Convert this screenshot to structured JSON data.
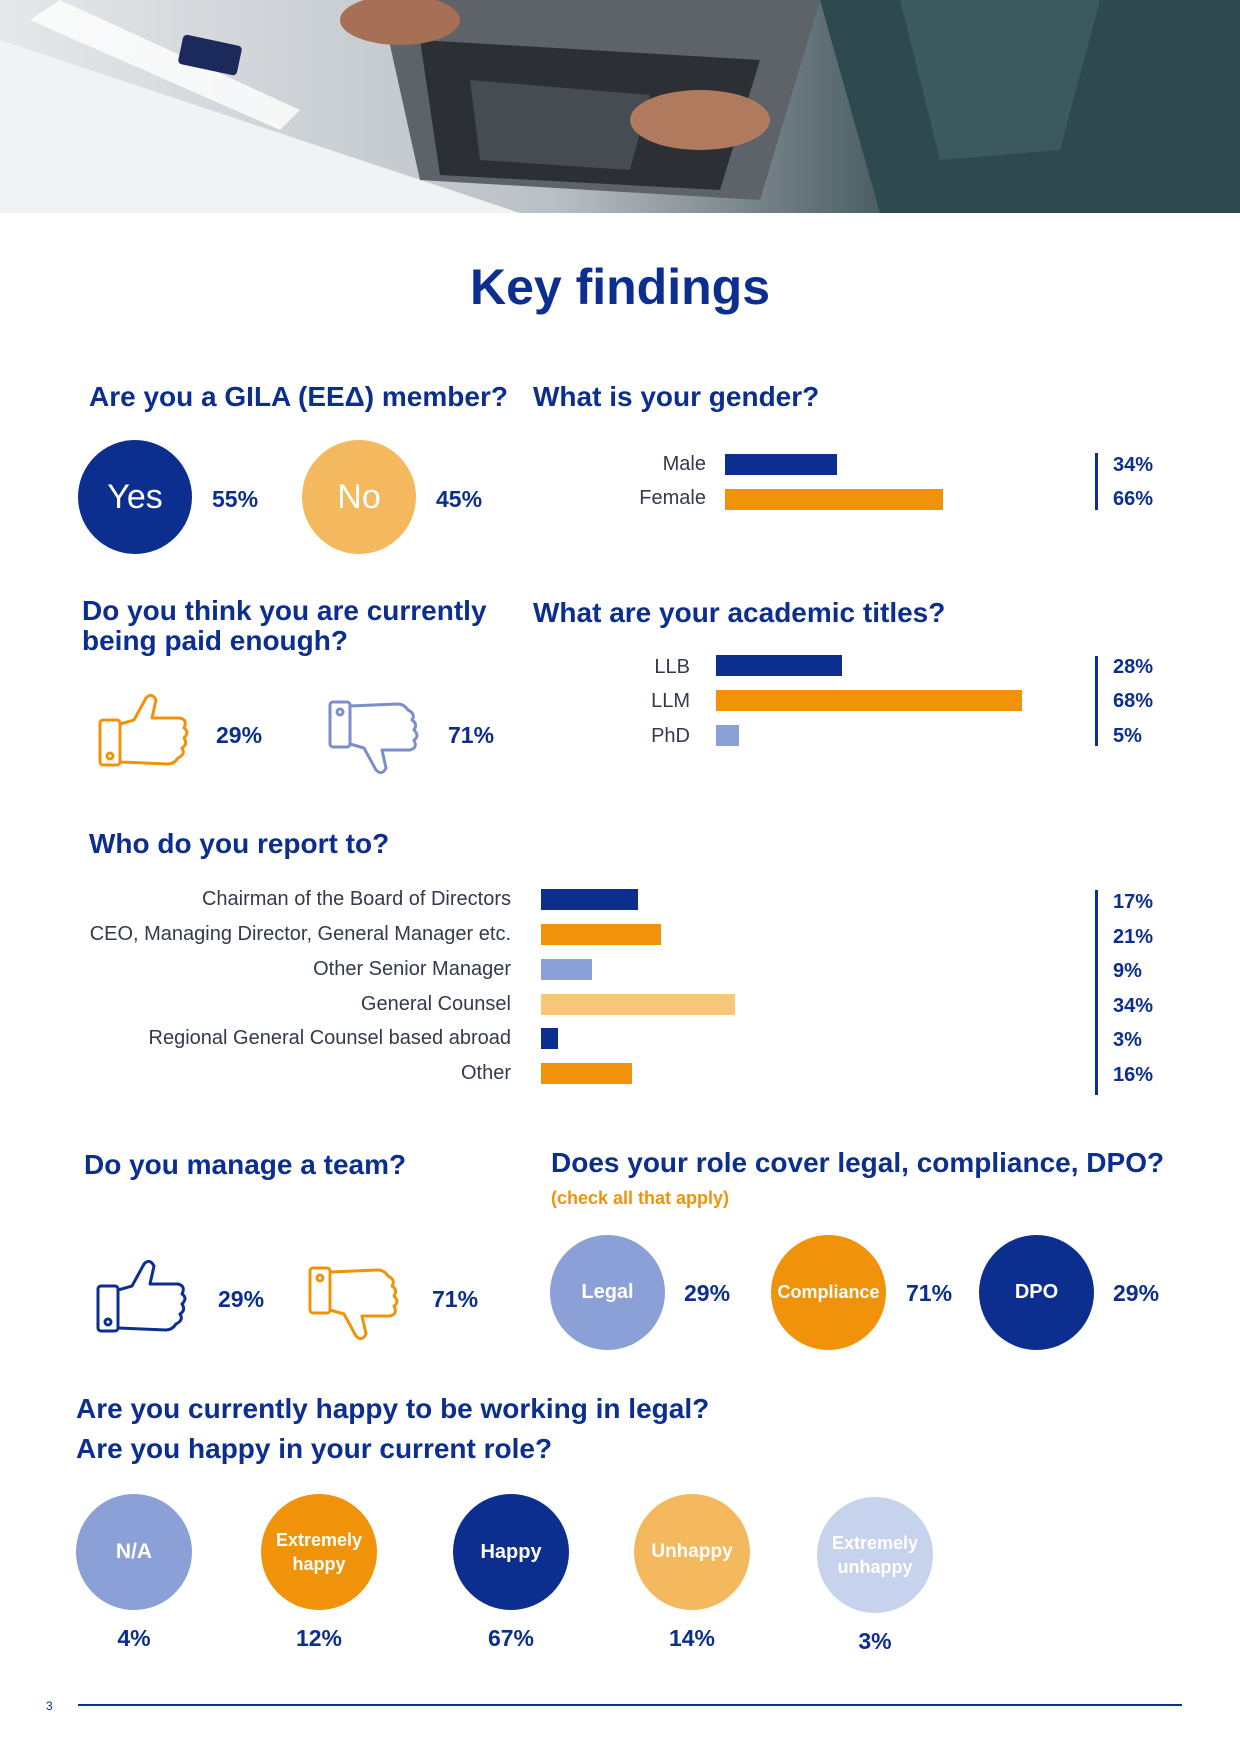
{
  "page_title": "Key findings",
  "page_number": "3",
  "colors": {
    "navy": "#0c2f8f",
    "orange": "#f0930a",
    "light_blue": "#8aa0d6",
    "light_orange": "#f8c77a",
    "pale_blue": "#c7d2ec"
  },
  "gila": {
    "question": "Are you a GILA (EEΔ) member?",
    "yes_label": "Yes",
    "yes_pct": "55%",
    "no_label": "No",
    "no_pct": "45%"
  },
  "gender": {
    "question": "What is your gender?",
    "rows": [
      {
        "label": "Male",
        "value": 34,
        "pct": "34%"
      },
      {
        "label": "Female",
        "value": 66,
        "pct": "66%"
      }
    ]
  },
  "paid": {
    "question": "Do you think you are currently being paid enough?",
    "yes_icon": "thumbs-up-icon",
    "yes_pct": "29%",
    "no_icon": "thumbs-down-icon",
    "no_pct": "71%"
  },
  "academic": {
    "question": "What are your academic titles?",
    "rows": [
      {
        "label": "LLB",
        "value": 28,
        "pct": "28%"
      },
      {
        "label": "LLM",
        "value": 68,
        "pct": "68%"
      },
      {
        "label": "PhD",
        "value": 5,
        "pct": "5%"
      }
    ]
  },
  "report": {
    "question": "Who do you report to?",
    "rows": [
      {
        "label": "Chairman of the Board of Directors",
        "value": 17,
        "pct": "17%"
      },
      {
        "label": "CEO, Managing Director, General Manager etc.",
        "value": 21,
        "pct": "21%"
      },
      {
        "label": "Other Senior Manager",
        "value": 9,
        "pct": "9%"
      },
      {
        "label": "General Counsel",
        "value": 34,
        "pct": "34%"
      },
      {
        "label": "Regional General Counsel based abroad",
        "value": 3,
        "pct": "3%"
      },
      {
        "label": "Other",
        "value": 16,
        "pct": "16%"
      }
    ]
  },
  "team": {
    "question": "Do you manage a team?",
    "yes_icon": "thumbs-up-icon",
    "yes_pct": "29%",
    "no_icon": "thumbs-down-icon",
    "no_pct": "71%"
  },
  "role": {
    "question": "Does your role cover legal, compliance, DPO?",
    "note": "(check all that apply)",
    "items": [
      {
        "label": "Legal",
        "pct": "29%"
      },
      {
        "label": "Compliance",
        "pct": "71%"
      },
      {
        "label": "DPO",
        "pct": "29%"
      }
    ]
  },
  "happy": {
    "question_1": "Are you currently happy to be working in legal?",
    "question_2": "Are you happy in your current role?",
    "items": [
      {
        "label": "N/A",
        "pct": "4%"
      },
      {
        "label": "Extremely happy",
        "pct": "12%"
      },
      {
        "label": "Happy",
        "pct": "67%"
      },
      {
        "label": "Unhappy",
        "pct": "14%"
      },
      {
        "label": "Extremely unhappy",
        "pct": "3%"
      }
    ]
  }
}
